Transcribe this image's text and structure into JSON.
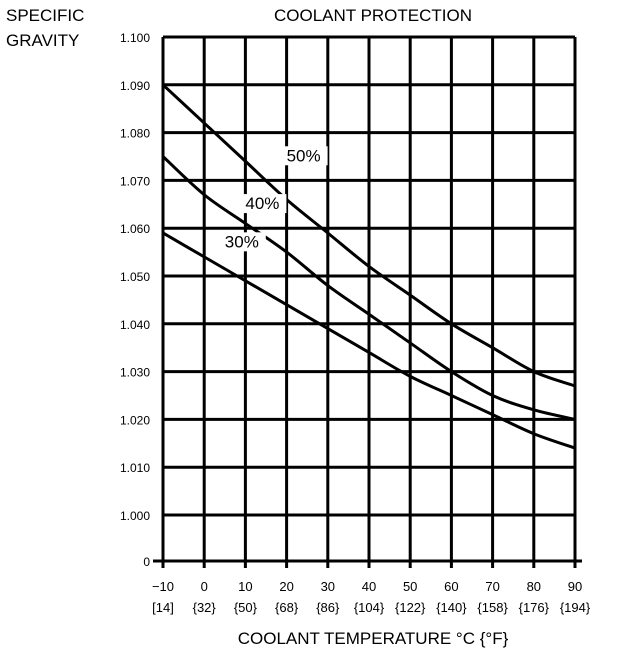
{
  "chart_data": {
    "type": "line",
    "title": "COOLANT PROTECTION",
    "ylabel": [
      "SPECIFIC",
      "GRAVITY"
    ],
    "xlabel": "COOLANT TEMPERATURE °C {°F}",
    "x": [
      -10,
      0,
      10,
      20,
      30,
      40,
      50,
      60,
      70,
      80,
      90
    ],
    "x_tick_labels": [
      "−10",
      "0",
      "10",
      "20",
      "30",
      "40",
      "50",
      "60",
      "70",
      "80",
      "90"
    ],
    "x_tick_sublabels": [
      "[14]",
      "{32}",
      "{50}",
      "{68}",
      "{86}",
      "{104}",
      "{122}",
      "{140}",
      "{158}",
      "{176}",
      "{194}"
    ],
    "y_ticks": [
      1.0,
      1.01,
      1.02,
      1.03,
      1.04,
      1.05,
      1.06,
      1.07,
      1.08,
      1.09,
      1.1
    ],
    "y_tick_labels": [
      "1.000",
      "1.010",
      "1.020",
      "1.030",
      "1.040",
      "1.050",
      "1.060",
      "1.070",
      "1.080",
      "1.090",
      "1.100"
    ],
    "y_zero_label": "0",
    "xlim": [
      -10,
      90
    ],
    "ylim": [
      1.0,
      1.1
    ],
    "axis_break": "y axis broken between 0 and 1.000",
    "grid": true,
    "series": [
      {
        "name": "50%",
        "values": [
          1.09,
          1.082,
          1.074,
          1.066,
          1.059,
          1.052,
          1.046,
          1.04,
          1.035,
          1.03,
          1.027
        ],
        "label_at": [
          20,
          1.074
        ]
      },
      {
        "name": "40%",
        "values": [
          1.075,
          1.067,
          1.061,
          1.055,
          1.048,
          1.042,
          1.036,
          1.03,
          1.025,
          1.022,
          1.02
        ],
        "label_at": [
          10,
          1.064
        ]
      },
      {
        "name": "30%",
        "values": [
          1.059,
          1.054,
          1.049,
          1.044,
          1.039,
          1.034,
          1.029,
          1.025,
          1.021,
          1.017,
          1.014
        ],
        "label_at": [
          5,
          1.056
        ]
      }
    ]
  }
}
